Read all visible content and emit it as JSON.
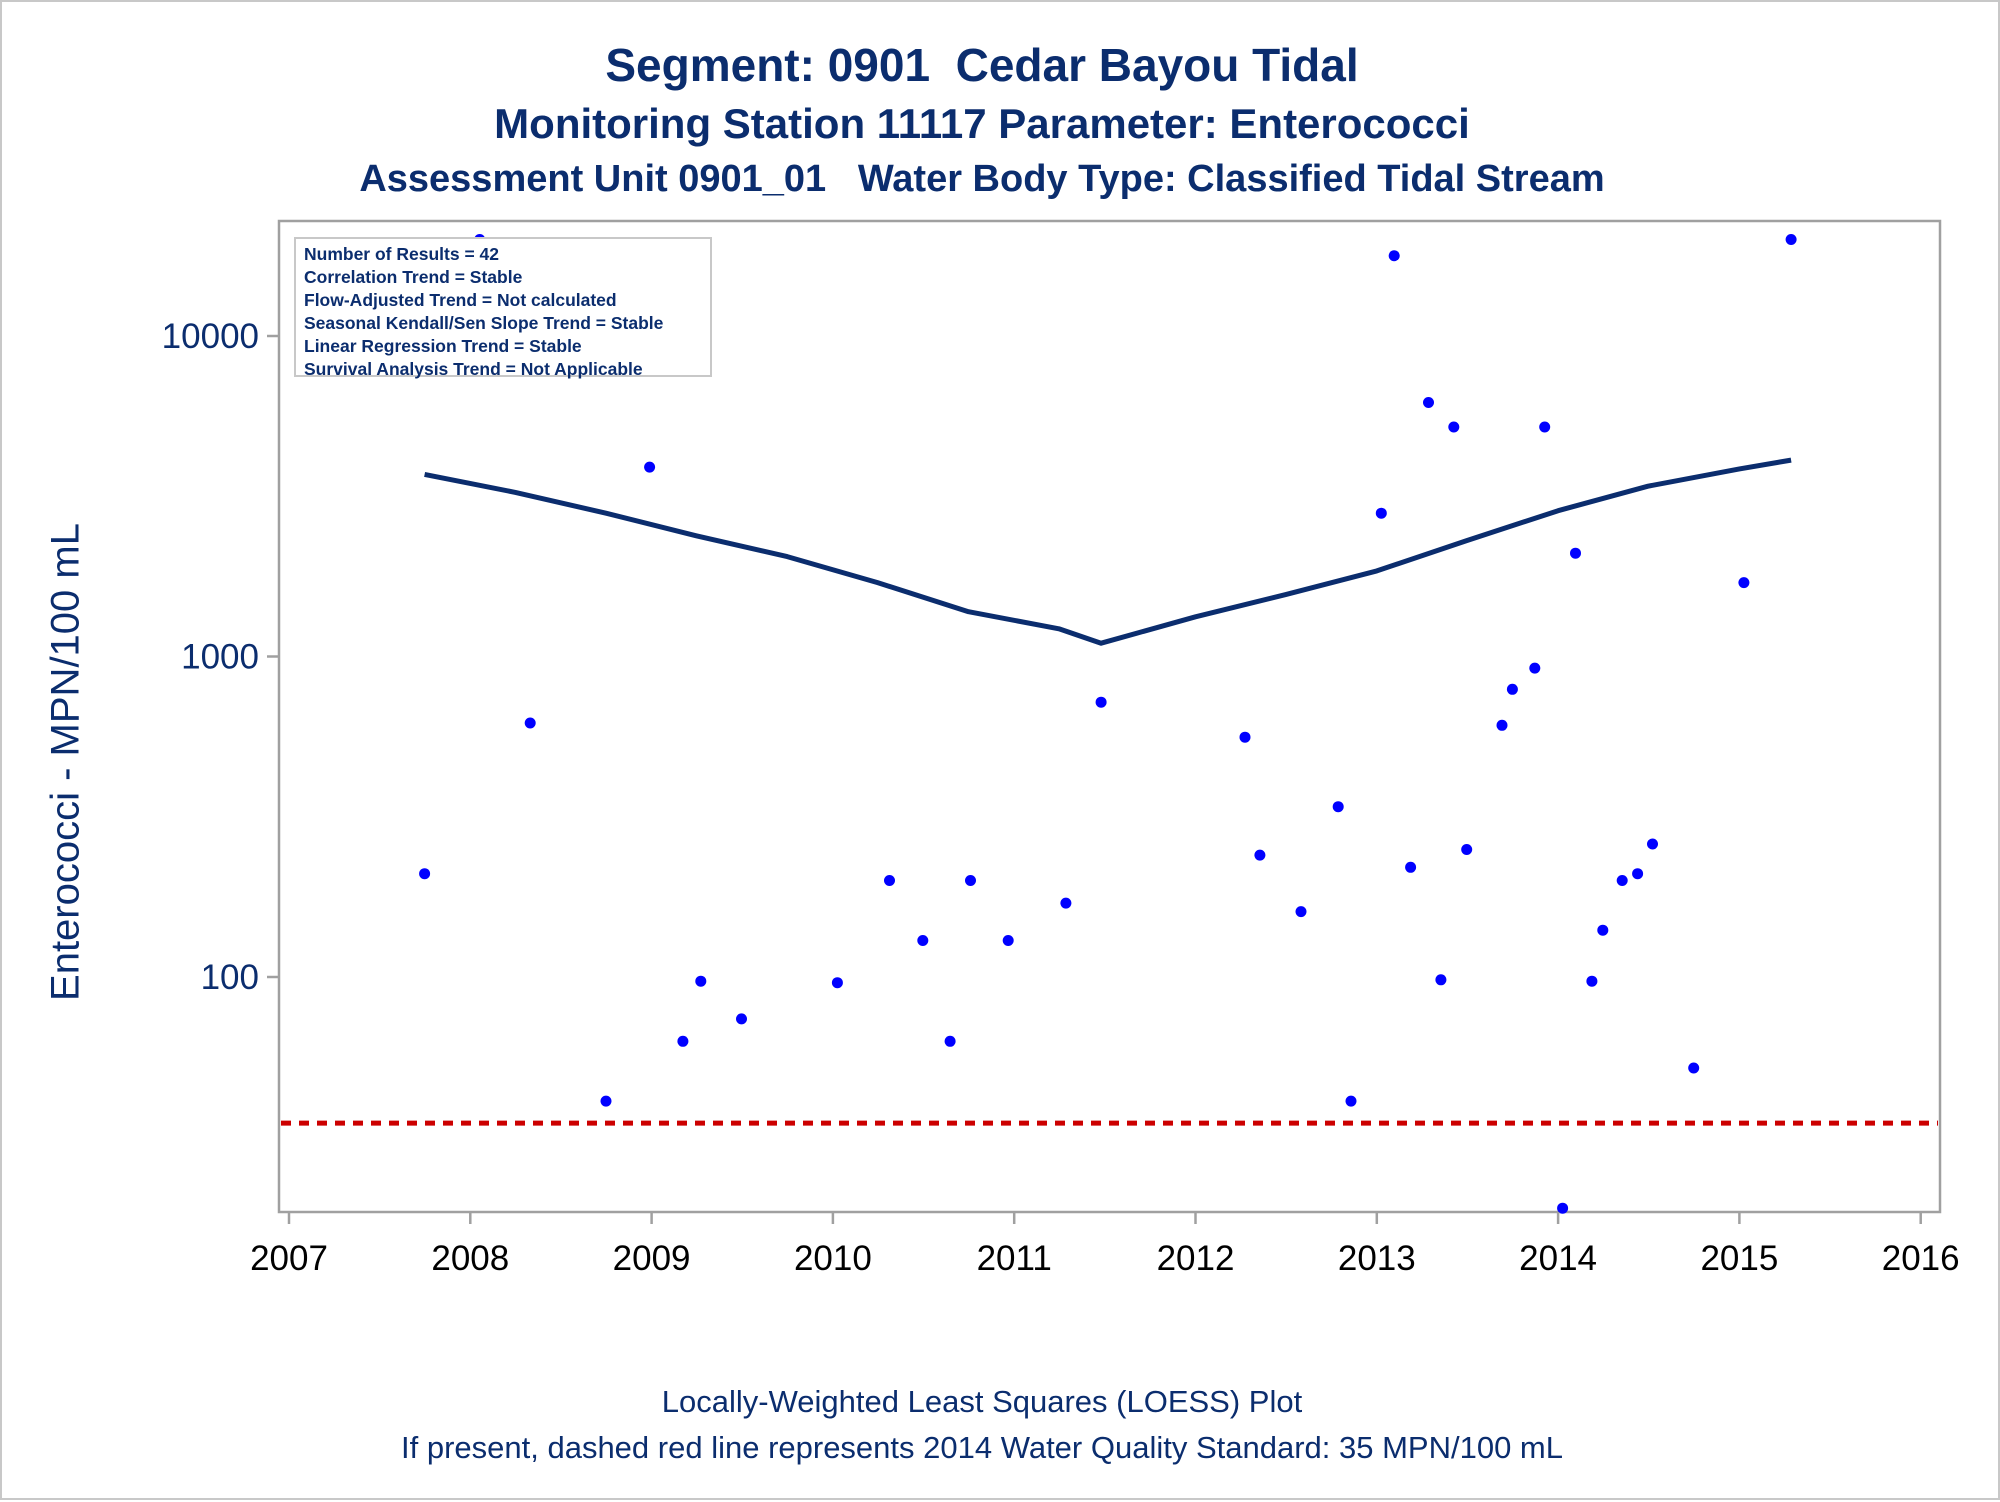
{
  "titles": {
    "line1": "Segment: 0901  Cedar Bayou Tidal",
    "line2": "Monitoring Station 11117 Parameter: Enterococci",
    "line3": "Assessment Unit 0901_01   Water Body Type: Classified Tidal Stream"
  },
  "footnotes": {
    "line1": "Locally-Weighted Least Squares (LOESS) Plot",
    "line2": "If present, dashed red line represents 2014 Water Quality Standard: 35 MPN/100 mL"
  },
  "stats": [
    "Number of Results = 42",
    "Correlation Trend = Stable",
    "Flow-Adjusted Trend = Not calculated",
    "Seasonal Kendall/Sen Slope Trend = Stable",
    "Linear Regression Trend = Stable",
    "Survival Analysis Trend = Not Applicable"
  ],
  "colors": {
    "points": "#0000ff",
    "loess": "#0b2d6e",
    "standard_line": "#cc0000",
    "axis": "#a0a0a0",
    "text": "#0b2d6e"
  },
  "chart_data": {
    "type": "scatter",
    "title": "Segment: 0901  Cedar Bayou Tidal",
    "xlabel": "",
    "ylabel": "Enterococci - MPN/100 mL",
    "yscale": "log",
    "xlim": [
      "2007-01-01",
      "2016-03-01"
    ],
    "ylim": [
      18,
      21000
    ],
    "x_ticks": [
      "2007",
      "2008",
      "2009",
      "2010",
      "2011",
      "2012",
      "2013",
      "2014",
      "2015",
      "2016"
    ],
    "y_ticks": [
      100,
      1000,
      10000
    ],
    "y_tick_labels": [
      "100",
      "1000",
      "10000"
    ],
    "legend": "top-left",
    "reference_line": {
      "value": 35,
      "label": "2014 Water Quality Standard: 35 MPN/100 mL",
      "style": "dashed"
    },
    "series": [
      {
        "type": "scatter",
        "points": [
          [
            "2007-10-01",
            210
          ],
          [
            "2008-01-20",
            20000
          ],
          [
            "2008-05-01",
            620
          ],
          [
            "2008-10-01",
            41
          ],
          [
            "2008-12-28",
            3900
          ],
          [
            "2009-03-05",
            63
          ],
          [
            "2009-04-10",
            97
          ],
          [
            "2009-07-01",
            74
          ],
          [
            "2010-01-10",
            96
          ],
          [
            "2010-04-25",
            200
          ],
          [
            "2010-07-01",
            130
          ],
          [
            "2010-08-25",
            63
          ],
          [
            "2010-10-05",
            200
          ],
          [
            "2010-12-20",
            130
          ],
          [
            "2011-04-15",
            170
          ],
          [
            "2011-06-25",
            720
          ],
          [
            "2012-04-10",
            560
          ],
          [
            "2012-05-10",
            240
          ],
          [
            "2012-08-01",
            160
          ],
          [
            "2012-10-15",
            340
          ],
          [
            "2012-11-10",
            41
          ],
          [
            "2013-01-10",
            2800
          ],
          [
            "2013-02-05",
            17800
          ],
          [
            "2013-03-10",
            220
          ],
          [
            "2013-04-15",
            6200
          ],
          [
            "2013-05-10",
            98
          ],
          [
            "2013-06-05",
            5200
          ],
          [
            "2013-07-01",
            250
          ],
          [
            "2013-09-10",
            610
          ],
          [
            "2013-10-01",
            790
          ],
          [
            "2013-11-15",
            920
          ],
          [
            "2013-12-05",
            5200
          ],
          [
            "2014-01-10",
            19
          ],
          [
            "2014-02-05",
            2100
          ],
          [
            "2014-03-10",
            97
          ],
          [
            "2014-04-01",
            140
          ],
          [
            "2014-05-10",
            200
          ],
          [
            "2014-06-10",
            210
          ],
          [
            "2014-07-10",
            260
          ],
          [
            "2014-10-01",
            52
          ],
          [
            "2015-01-10",
            1700
          ],
          [
            "2015-04-15",
            20000
          ]
        ]
      },
      {
        "type": "line",
        "points": [
          [
            "2007-10-01",
            3700
          ],
          [
            "2008-04-01",
            3250
          ],
          [
            "2008-10-01",
            2800
          ],
          [
            "2009-04-01",
            2380
          ],
          [
            "2009-10-01",
            2050
          ],
          [
            "2010-04-01",
            1700
          ],
          [
            "2010-10-01",
            1380
          ],
          [
            "2011-04-01",
            1220
          ],
          [
            "2011-06-25",
            1100
          ],
          [
            "2012-01-01",
            1330
          ],
          [
            "2012-07-01",
            1560
          ],
          [
            "2013-01-01",
            1850
          ],
          [
            "2013-07-01",
            2300
          ],
          [
            "2014-01-01",
            2850
          ],
          [
            "2014-07-01",
            3400
          ],
          [
            "2015-01-01",
            3850
          ],
          [
            "2015-04-15",
            4100
          ]
        ]
      }
    ]
  }
}
